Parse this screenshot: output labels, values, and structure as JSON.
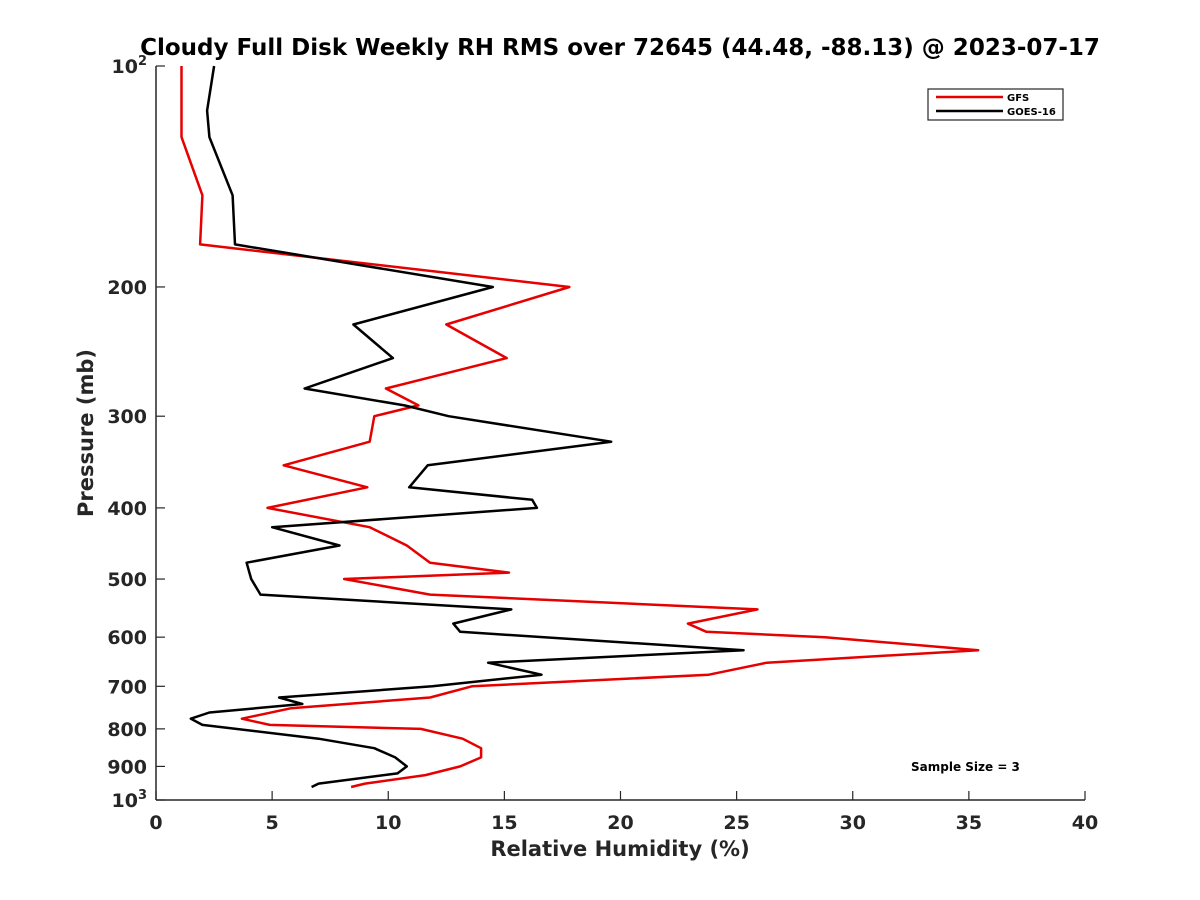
{
  "chart_data": {
    "type": "line",
    "title": "Cloudy Full Disk Weekly RH RMS over 72645 (44.48, -88.13) @ 2023-07-17",
    "xlabel": "Relative Humidity (%)",
    "ylabel": "Pressure (mb)",
    "xlim": [
      0,
      40
    ],
    "ylim": [
      100,
      1000
    ],
    "y_scale": "log",
    "y_reversed": true,
    "grid": false,
    "legend_position": "top-right",
    "x_ticks": [
      0,
      5,
      10,
      15,
      20,
      25,
      30,
      35,
      40
    ],
    "y_ticks": [
      {
        "value": 100,
        "base": "10",
        "exp": "2"
      },
      {
        "value": 200,
        "label": "200"
      },
      {
        "value": 300,
        "label": "300"
      },
      {
        "value": 400,
        "label": "400"
      },
      {
        "value": 500,
        "label": "500"
      },
      {
        "value": 600,
        "label": "600"
      },
      {
        "value": 700,
        "label": "700"
      },
      {
        "value": 800,
        "label": "800"
      },
      {
        "value": 900,
        "label": "900"
      },
      {
        "value": 1000,
        "base": "10",
        "exp": "3"
      }
    ],
    "series": [
      {
        "name": "GFS",
        "color": "#e60000",
        "points": [
          [
            1.1,
            100
          ],
          [
            1.1,
            125
          ],
          [
            2.0,
            150
          ],
          [
            1.9,
            175
          ],
          [
            17.8,
            200
          ],
          [
            12.5,
            225
          ],
          [
            15.1,
            250
          ],
          [
            9.9,
            275
          ],
          [
            11.3,
            290
          ],
          [
            9.4,
            300
          ],
          [
            9.2,
            325
          ],
          [
            5.5,
            350
          ],
          [
            9.1,
            375
          ],
          [
            4.8,
            400
          ],
          [
            9.2,
            425
          ],
          [
            10.8,
            450
          ],
          [
            11.8,
            475
          ],
          [
            15.2,
            490
          ],
          [
            8.1,
            500
          ],
          [
            11.8,
            525
          ],
          [
            25.9,
            550
          ],
          [
            22.9,
            575
          ],
          [
            23.7,
            590
          ],
          [
            28.8,
            600
          ],
          [
            35.4,
            625
          ],
          [
            26.3,
            650
          ],
          [
            23.8,
            675
          ],
          [
            13.6,
            700
          ],
          [
            11.8,
            725
          ],
          [
            5.8,
            750
          ],
          [
            3.7,
            775
          ],
          [
            4.9,
            790
          ],
          [
            11.4,
            800
          ],
          [
            13.2,
            825
          ],
          [
            14.0,
            850
          ],
          [
            14.0,
            875
          ],
          [
            13.1,
            900
          ],
          [
            11.6,
            925
          ],
          [
            9.0,
            950
          ],
          [
            8.4,
            960
          ]
        ]
      },
      {
        "name": "GOES-16",
        "color": "#000000",
        "points": [
          [
            2.5,
            100
          ],
          [
            2.2,
            115
          ],
          [
            2.3,
            125
          ],
          [
            3.3,
            150
          ],
          [
            3.4,
            175
          ],
          [
            14.5,
            200
          ],
          [
            8.5,
            225
          ],
          [
            10.2,
            250
          ],
          [
            6.4,
            275
          ],
          [
            10.7,
            290
          ],
          [
            12.6,
            300
          ],
          [
            19.6,
            325
          ],
          [
            11.7,
            350
          ],
          [
            10.9,
            375
          ],
          [
            16.2,
            390
          ],
          [
            16.4,
            400
          ],
          [
            5.0,
            425
          ],
          [
            7.9,
            450
          ],
          [
            3.9,
            475
          ],
          [
            4.1,
            500
          ],
          [
            4.5,
            525
          ],
          [
            15.3,
            550
          ],
          [
            12.8,
            575
          ],
          [
            13.1,
            590
          ],
          [
            25.3,
            625
          ],
          [
            14.3,
            650
          ],
          [
            16.6,
            675
          ],
          [
            11.9,
            700
          ],
          [
            5.3,
            725
          ],
          [
            6.3,
            740
          ],
          [
            2.3,
            760
          ],
          [
            1.5,
            775
          ],
          [
            2.0,
            790
          ],
          [
            7.0,
            825
          ],
          [
            9.4,
            850
          ],
          [
            10.3,
            875
          ],
          [
            10.8,
            900
          ],
          [
            10.4,
            920
          ],
          [
            7.0,
            950
          ],
          [
            6.7,
            960
          ]
        ]
      }
    ],
    "annotation": "Sample Size = 3"
  }
}
